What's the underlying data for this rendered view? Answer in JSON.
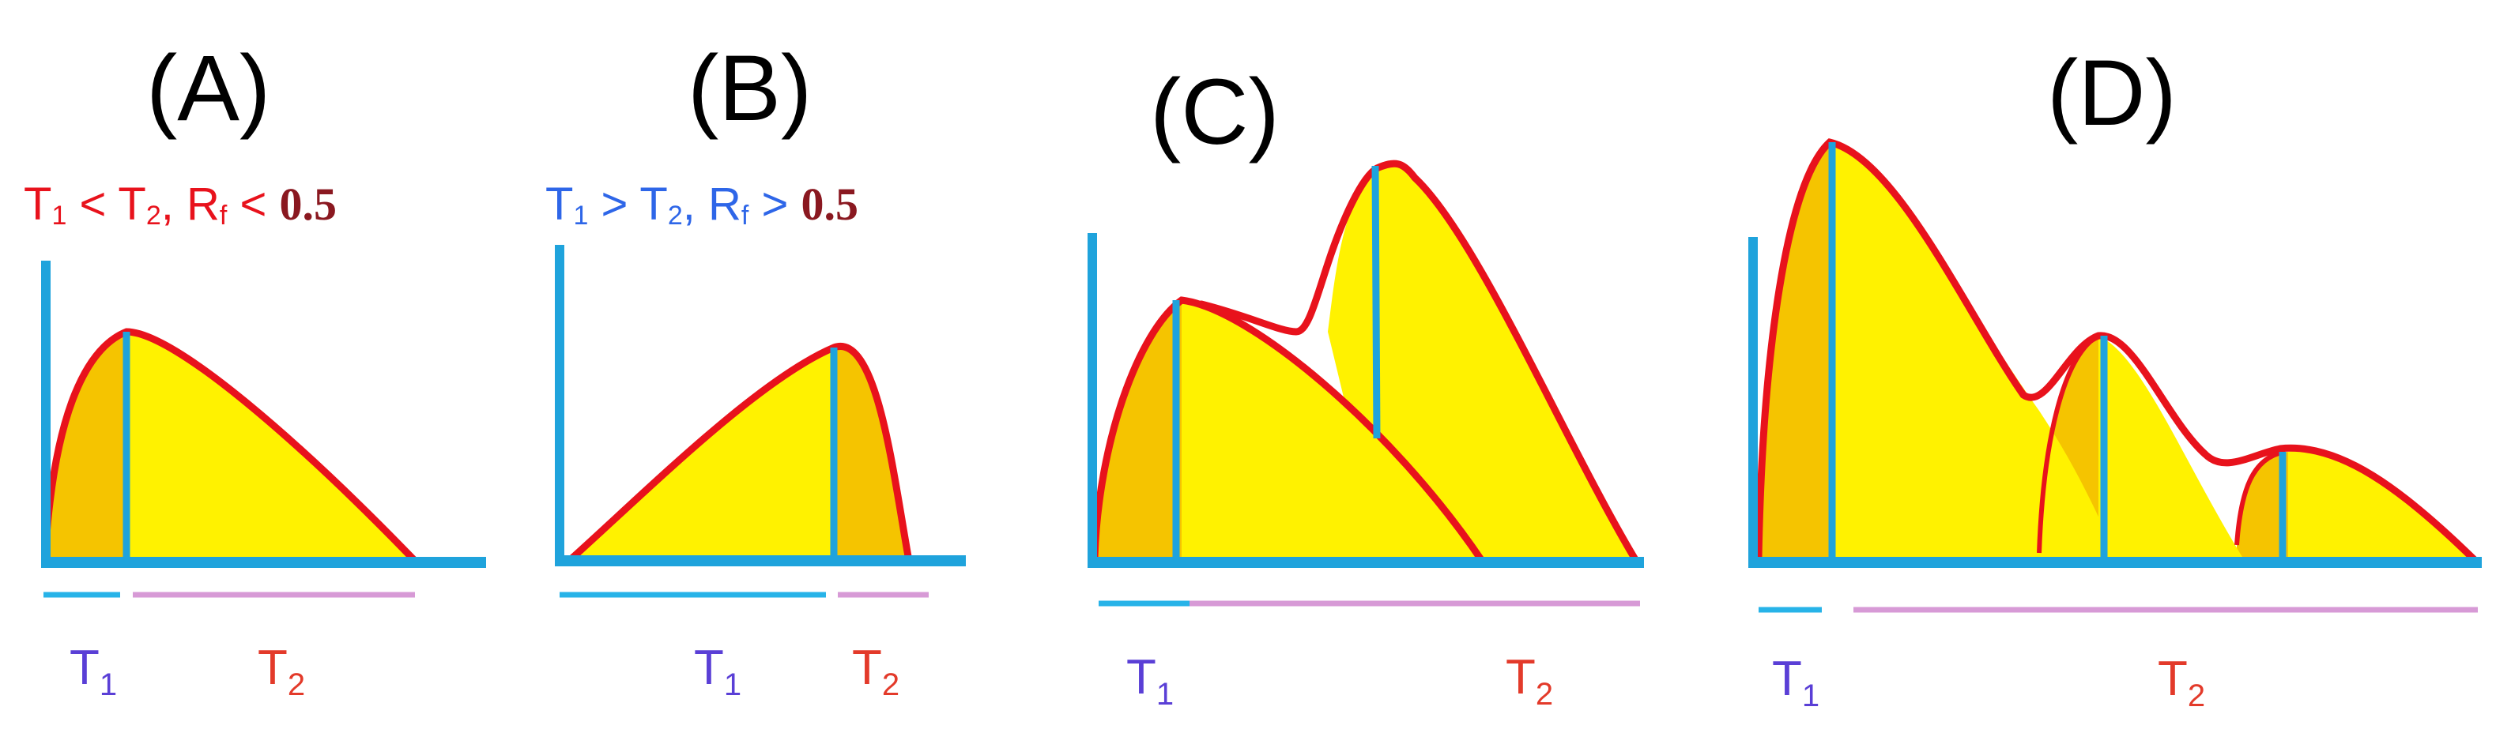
{
  "panels": [
    {
      "letter": "(A)",
      "condition": {
        "t1": "T",
        "s1": "1",
        "rel1": " < ",
        "t2": "T",
        "s2": "2",
        "sep": ", ",
        "r": "R",
        "rs": "f",
        "rel2": " < ",
        "num": "0.5"
      },
      "timebar": {
        "t1": "T",
        "t1_sub": "1",
        "t2": "T",
        "t2_sub": "2"
      }
    },
    {
      "letter": "(B)",
      "condition": {
        "t1": "T",
        "s1": "1",
        "rel1": " > ",
        "t2": "T",
        "s2": "2",
        "sep": ", ",
        "r": "R",
        "rs": "f",
        "rel2": " > ",
        "num": "0.5"
      },
      "timebar": {
        "t1": "T",
        "t1_sub": "1",
        "t2": "T",
        "t2_sub": "2"
      }
    },
    {
      "letter": "(C)",
      "timebar": {
        "t1": "T",
        "t1_sub": "1",
        "t2": "T",
        "t2_sub": "2"
      }
    },
    {
      "letter": "(D)",
      "timebar": {
        "t1": "T",
        "t1_sub": "1",
        "t2": "T",
        "t2_sub": "2"
      }
    }
  ],
  "colors": {
    "axis": "#1fa3dc",
    "curve": "#e8121c",
    "rise_fill": "#f5c400",
    "fall_fill": "#fff200",
    "t1_text": "#5a3fd6",
    "t2_text": "#e33a2a",
    "t1_bar": "#27b3e8",
    "t2_bar": "#d79ad6",
    "cond_red": "#e8121c",
    "cond_blue": "#2e66e8",
    "cond_num": "#8a1820"
  }
}
